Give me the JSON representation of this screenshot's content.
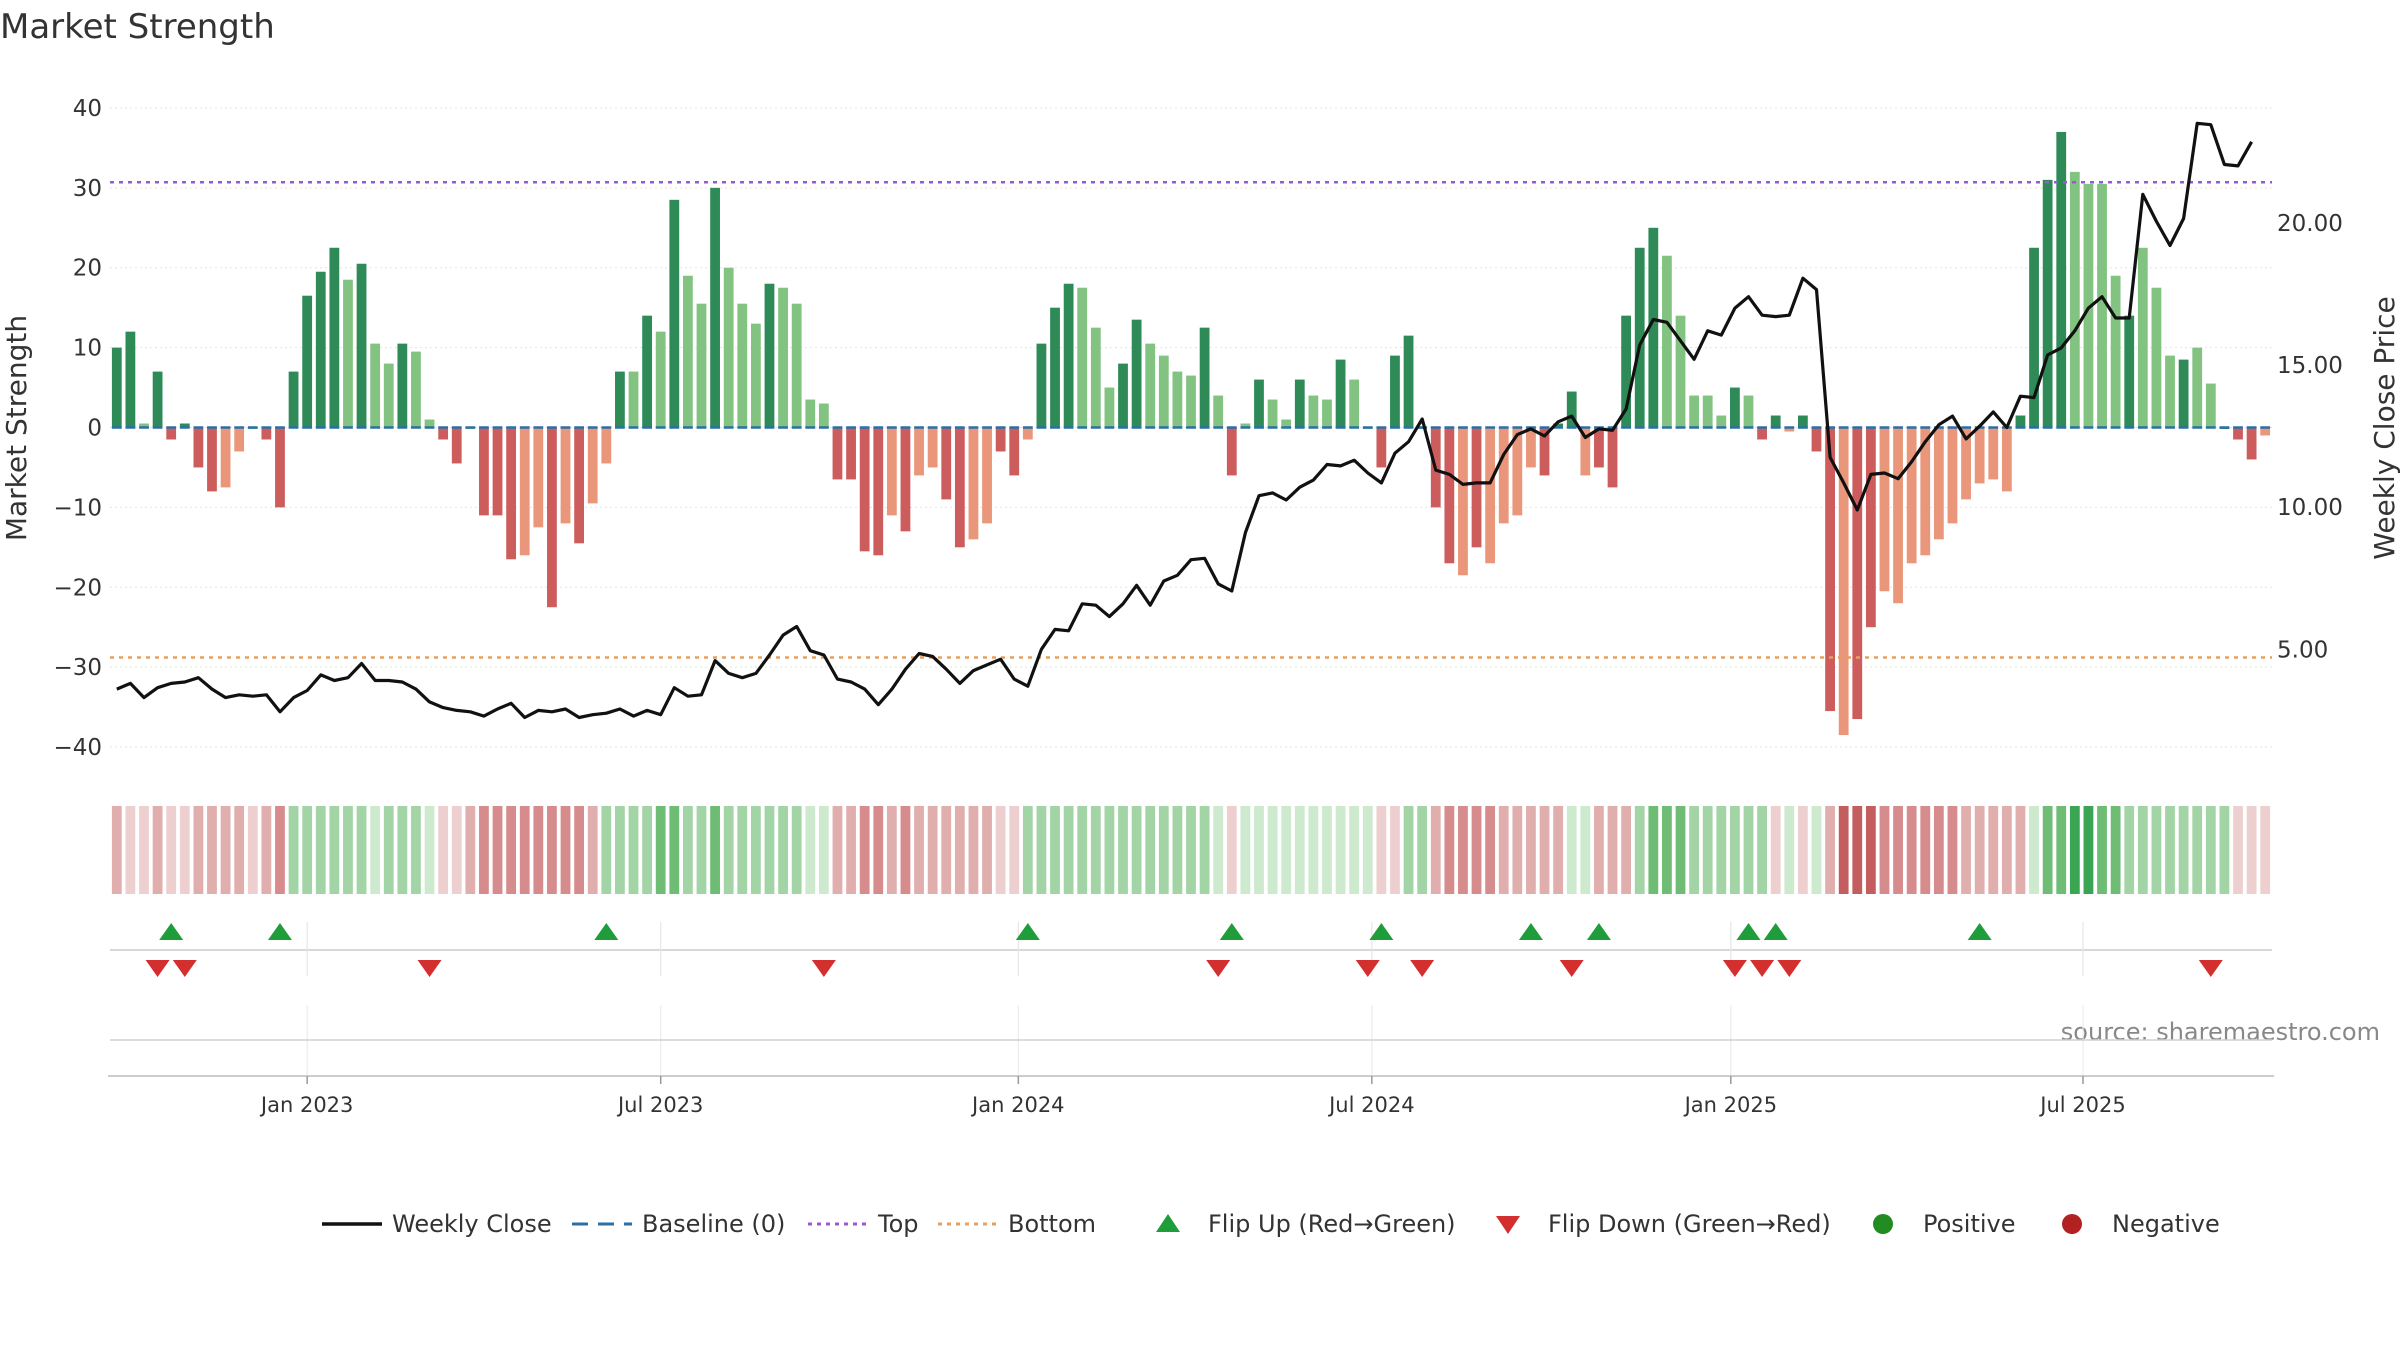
{
  "chart_data": {
    "type": "bar",
    "title": "Market Strength",
    "ylabel": "Market Strength",
    "ylabel_right": "Weekly Close Price",
    "source": "source: sharemaestro.com",
    "ylim": [
      -42,
      42
    ],
    "yticks": [
      -40,
      -30,
      -20,
      -10,
      0,
      10,
      20,
      30,
      40
    ],
    "ylim_right": [
      1.0,
      24.6
    ],
    "yticks_right": [
      5.0,
      10.0,
      15.0,
      20.0
    ],
    "yticks_right_labels": [
      "5.00",
      "10.00",
      "15.00",
      "20.00"
    ],
    "top_level": 30.7,
    "bottom_level": -28.8,
    "x_months_labels": [
      "Jan 2023",
      "Jul 2023",
      "Jan 2024",
      "Jul 2024",
      "Jan 2025",
      "Jul 2025"
    ],
    "x_month_positions": [
      14.5,
      40.5,
      66.8,
      92.8,
      119.2,
      145.1
    ],
    "strength": [
      10,
      12,
      0.5,
      7,
      -1.5,
      0.5,
      -5,
      -8,
      -7.5,
      -3,
      0,
      -1.5,
      -10,
      7,
      16.5,
      19.5,
      22.5,
      18.5,
      20.5,
      10.5,
      8,
      10.5,
      9.5,
      1,
      -1.5,
      -4.5,
      0,
      -11,
      -11,
      -16.5,
      -16,
      -12.5,
      -22.5,
      -12,
      -14.5,
      -9.5,
      -4.5,
      7,
      7,
      14,
      12,
      28.5,
      19,
      15.5,
      30,
      20,
      15.5,
      13,
      18,
      17.5,
      15.5,
      3.5,
      3,
      -6.5,
      -6.5,
      -15.5,
      -16,
      -11,
      -13,
      -6,
      -5,
      -9,
      -15,
      -14,
      -12,
      -3,
      -6,
      -1.5,
      10.5,
      15,
      18,
      17.5,
      12.5,
      5,
      8,
      13.5,
      10.5,
      9,
      7,
      6.5,
      12.5,
      4,
      -6,
      0.5,
      6,
      3.5,
      1,
      6,
      4,
      3.5,
      8.5,
      6,
      0,
      -5,
      9,
      11.5,
      0,
      -10,
      -17,
      -18.5,
      -15,
      -17,
      -12,
      -11,
      -5,
      -6,
      0.5,
      4.5,
      -6,
      -5,
      -7.5,
      14,
      22.5,
      25,
      21.5,
      14,
      4,
      4,
      1.5,
      5,
      4,
      -1.5,
      1.5,
      -0.5,
      1.5,
      -3,
      -35.5,
      -38.5,
      -36.5,
      -25,
      -20.5,
      -22,
      -17,
      -16,
      -14,
      -12,
      -9,
      -7,
      -6.5,
      -8,
      1.5,
      22.5,
      31,
      37,
      32,
      30.5,
      30.5,
      19,
      14,
      22.5,
      17.5,
      9,
      8.5,
      10,
      5.5,
      0,
      -1.5,
      -4,
      -1
    ],
    "strength_shade": [
      "d",
      "d",
      "l",
      "d",
      "d",
      "d",
      "d",
      "d",
      "l",
      "l",
      "l",
      "d",
      "d",
      "d",
      "d",
      "d",
      "d",
      "l",
      "d",
      "l",
      "l",
      "d",
      "l",
      "l",
      "d",
      "d",
      "l",
      "d",
      "d",
      "d",
      "l",
      "l",
      "d",
      "l",
      "d",
      "l",
      "l",
      "d",
      "l",
      "d",
      "l",
      "d",
      "l",
      "l",
      "d",
      "l",
      "l",
      "l",
      "d",
      "l",
      "l",
      "l",
      "l",
      "d",
      "d",
      "d",
      "d",
      "l",
      "d",
      "l",
      "l",
      "d",
      "d",
      "l",
      "l",
      "d",
      "d",
      "l",
      "d",
      "d",
      "d",
      "l",
      "l",
      "l",
      "d",
      "d",
      "l",
      "l",
      "l",
      "l",
      "d",
      "l",
      "d",
      "l",
      "d",
      "l",
      "l",
      "d",
      "l",
      "l",
      "d",
      "l",
      "l",
      "d",
      "d",
      "d",
      "l",
      "d",
      "d",
      "l",
      "d",
      "l",
      "l",
      "l",
      "l",
      "d",
      "d",
      "d",
      "l",
      "d",
      "d",
      "d",
      "d",
      "d",
      "l",
      "l",
      "l",
      "l",
      "l",
      "d",
      "l",
      "d",
      "d",
      "l",
      "d",
      "d",
      "d",
      "l",
      "d",
      "d",
      "l",
      "l",
      "l",
      "l",
      "l",
      "l",
      "l",
      "l",
      "l",
      "l",
      "d",
      "d",
      "d",
      "d",
      "l",
      "l",
      "l",
      "l",
      "d",
      "l",
      "l",
      "l",
      "d",
      "l",
      "l",
      "d",
      "d",
      "d",
      "l"
    ],
    "price": [
      3.6,
      3.8,
      3.3,
      3.65,
      3.8,
      3.85,
      4.0,
      3.6,
      3.3,
      3.4,
      3.35,
      3.4,
      2.8,
      3.3,
      3.55,
      4.1,
      3.9,
      4.0,
      4.5,
      3.9,
      3.9,
      3.85,
      3.6,
      3.15,
      2.95,
      2.85,
      2.8,
      2.65,
      2.9,
      3.1,
      2.6,
      2.85,
      2.8,
      2.9,
      2.6,
      2.7,
      2.75,
      2.9,
      2.65,
      2.85,
      2.7,
      3.65,
      3.35,
      3.4,
      4.6,
      4.15,
      4.0,
      4.15,
      4.8,
      5.5,
      5.8,
      4.95,
      4.8,
      3.95,
      3.85,
      3.6,
      3.05,
      3.6,
      4.3,
      4.85,
      4.75,
      4.3,
      3.8,
      4.25,
      4.45,
      4.65,
      3.95,
      3.7,
      5.0,
      5.7,
      5.65,
      6.6,
      6.55,
      6.15,
      6.6,
      7.25,
      6.55,
      7.4,
      7.6,
      8.15,
      8.2,
      7.3,
      7.05,
      9.1,
      10.4,
      10.5,
      10.25,
      10.7,
      10.95,
      11.5,
      11.45,
      11.65,
      11.2,
      10.85,
      11.9,
      12.3,
      13.1,
      11.3,
      11.15,
      10.8,
      10.85,
      10.85,
      11.85,
      12.55,
      12.75,
      12.5,
      13.0,
      13.2,
      12.45,
      12.75,
      12.7,
      13.45,
      15.7,
      16.6,
      16.5,
      15.85,
      15.2,
      16.2,
      16.05,
      17.0,
      17.4,
      16.75,
      16.7,
      16.75,
      18.05,
      17.65,
      11.75,
      10.85,
      9.9,
      11.15,
      11.2,
      11.0,
      11.6,
      12.3,
      12.9,
      13.2,
      12.4,
      12.85,
      13.35,
      12.8,
      13.9,
      13.85,
      15.35,
      15.6,
      16.2,
      17.0,
      17.4,
      16.65,
      16.65,
      21.0,
      20.05,
      19.2,
      20.15,
      23.5,
      23.45,
      22.05,
      22.0,
      22.85
    ],
    "flip_up": [
      4.5,
      12.5,
      36.5,
      67.5,
      82.5,
      93.5,
      104.5,
      109.5,
      120.5,
      122.5,
      137.5
    ],
    "flip_down": [
      3.5,
      5.5,
      23.5,
      52.5,
      81.5,
      92.5,
      96.5,
      107.5,
      119.5,
      121.5,
      123.5,
      154.5
    ],
    "heat_levels": [
      -2,
      -1,
      -1,
      -2,
      -1,
      -1,
      -2,
      -2,
      -2,
      -2,
      -1,
      -2,
      -3,
      2,
      2,
      2,
      2,
      2,
      2,
      1,
      2,
      2,
      2,
      1,
      -1,
      -1,
      -2,
      -3,
      -3,
      -3,
      -3,
      -3,
      -3,
      -3,
      -3,
      -2,
      2,
      2,
      2,
      2,
      3,
      3,
      2,
      2,
      3,
      2,
      2,
      2,
      2,
      2,
      2,
      1,
      1,
      -2,
      -2,
      -3,
      -3,
      -2,
      -3,
      -2,
      -2,
      -2,
      -2,
      -2,
      -2,
      -1,
      -1,
      2,
      2,
      2,
      2,
      2,
      2,
      2,
      2,
      2,
      2,
      2,
      2,
      2,
      2,
      1,
      -1,
      1,
      1,
      1,
      1,
      1,
      1,
      1,
      1,
      1,
      1,
      -1,
      -1,
      2,
      2,
      -2,
      -3,
      -3,
      -3,
      -3,
      -2,
      -2,
      -2,
      -2,
      -2,
      1,
      1,
      -2,
      -2,
      -2,
      2,
      3,
      3,
      3,
      2,
      2,
      2,
      2,
      2,
      2,
      -1,
      1,
      -1,
      1,
      -2,
      -4,
      -4,
      -4,
      -3,
      -3,
      -3,
      -3,
      -3,
      -3,
      -2,
      -2,
      -2,
      -2,
      -2,
      1,
      3,
      3,
      4,
      4,
      3,
      3,
      2,
      2,
      2,
      2,
      2,
      2,
      2,
      2,
      -1,
      -1,
      -1
    ],
    "legend": {
      "position": "bottom",
      "entries": [
        {
          "label": "Weekly Close",
          "style": "line",
          "color": "#111111"
        },
        {
          "label": "Baseline (0)",
          "style": "dash",
          "color": "#2a6fa8"
        },
        {
          "label": "Top",
          "style": "dot",
          "color": "#9b59d0"
        },
        {
          "label": "Bottom",
          "style": "dot",
          "color": "#e5a060"
        },
        {
          "label": "Flip Up (Red→Green)",
          "style": "triangle-up",
          "color": "#1f9d3a"
        },
        {
          "label": "Flip Down (Green→Red)",
          "style": "triangle-down",
          "color": "#d32f2f"
        },
        {
          "label": "Positive",
          "style": "circle",
          "color": "#228b22"
        },
        {
          "label": "Negative",
          "style": "circle",
          "color": "#b22222"
        }
      ]
    },
    "colors": {
      "pos_dark": "#2e8b57",
      "pos_light": "#82c382",
      "neg_dark": "#cd5c5c",
      "neg_light": "#e9967a",
      "price_line": "#111111",
      "top_line": "#9b59d0",
      "bottom_line": "#e5a060",
      "baseline": "#2a6fa8",
      "flip_up": "#1f9d3a",
      "flip_down": "#d32f2f"
    },
    "grid": true
  }
}
